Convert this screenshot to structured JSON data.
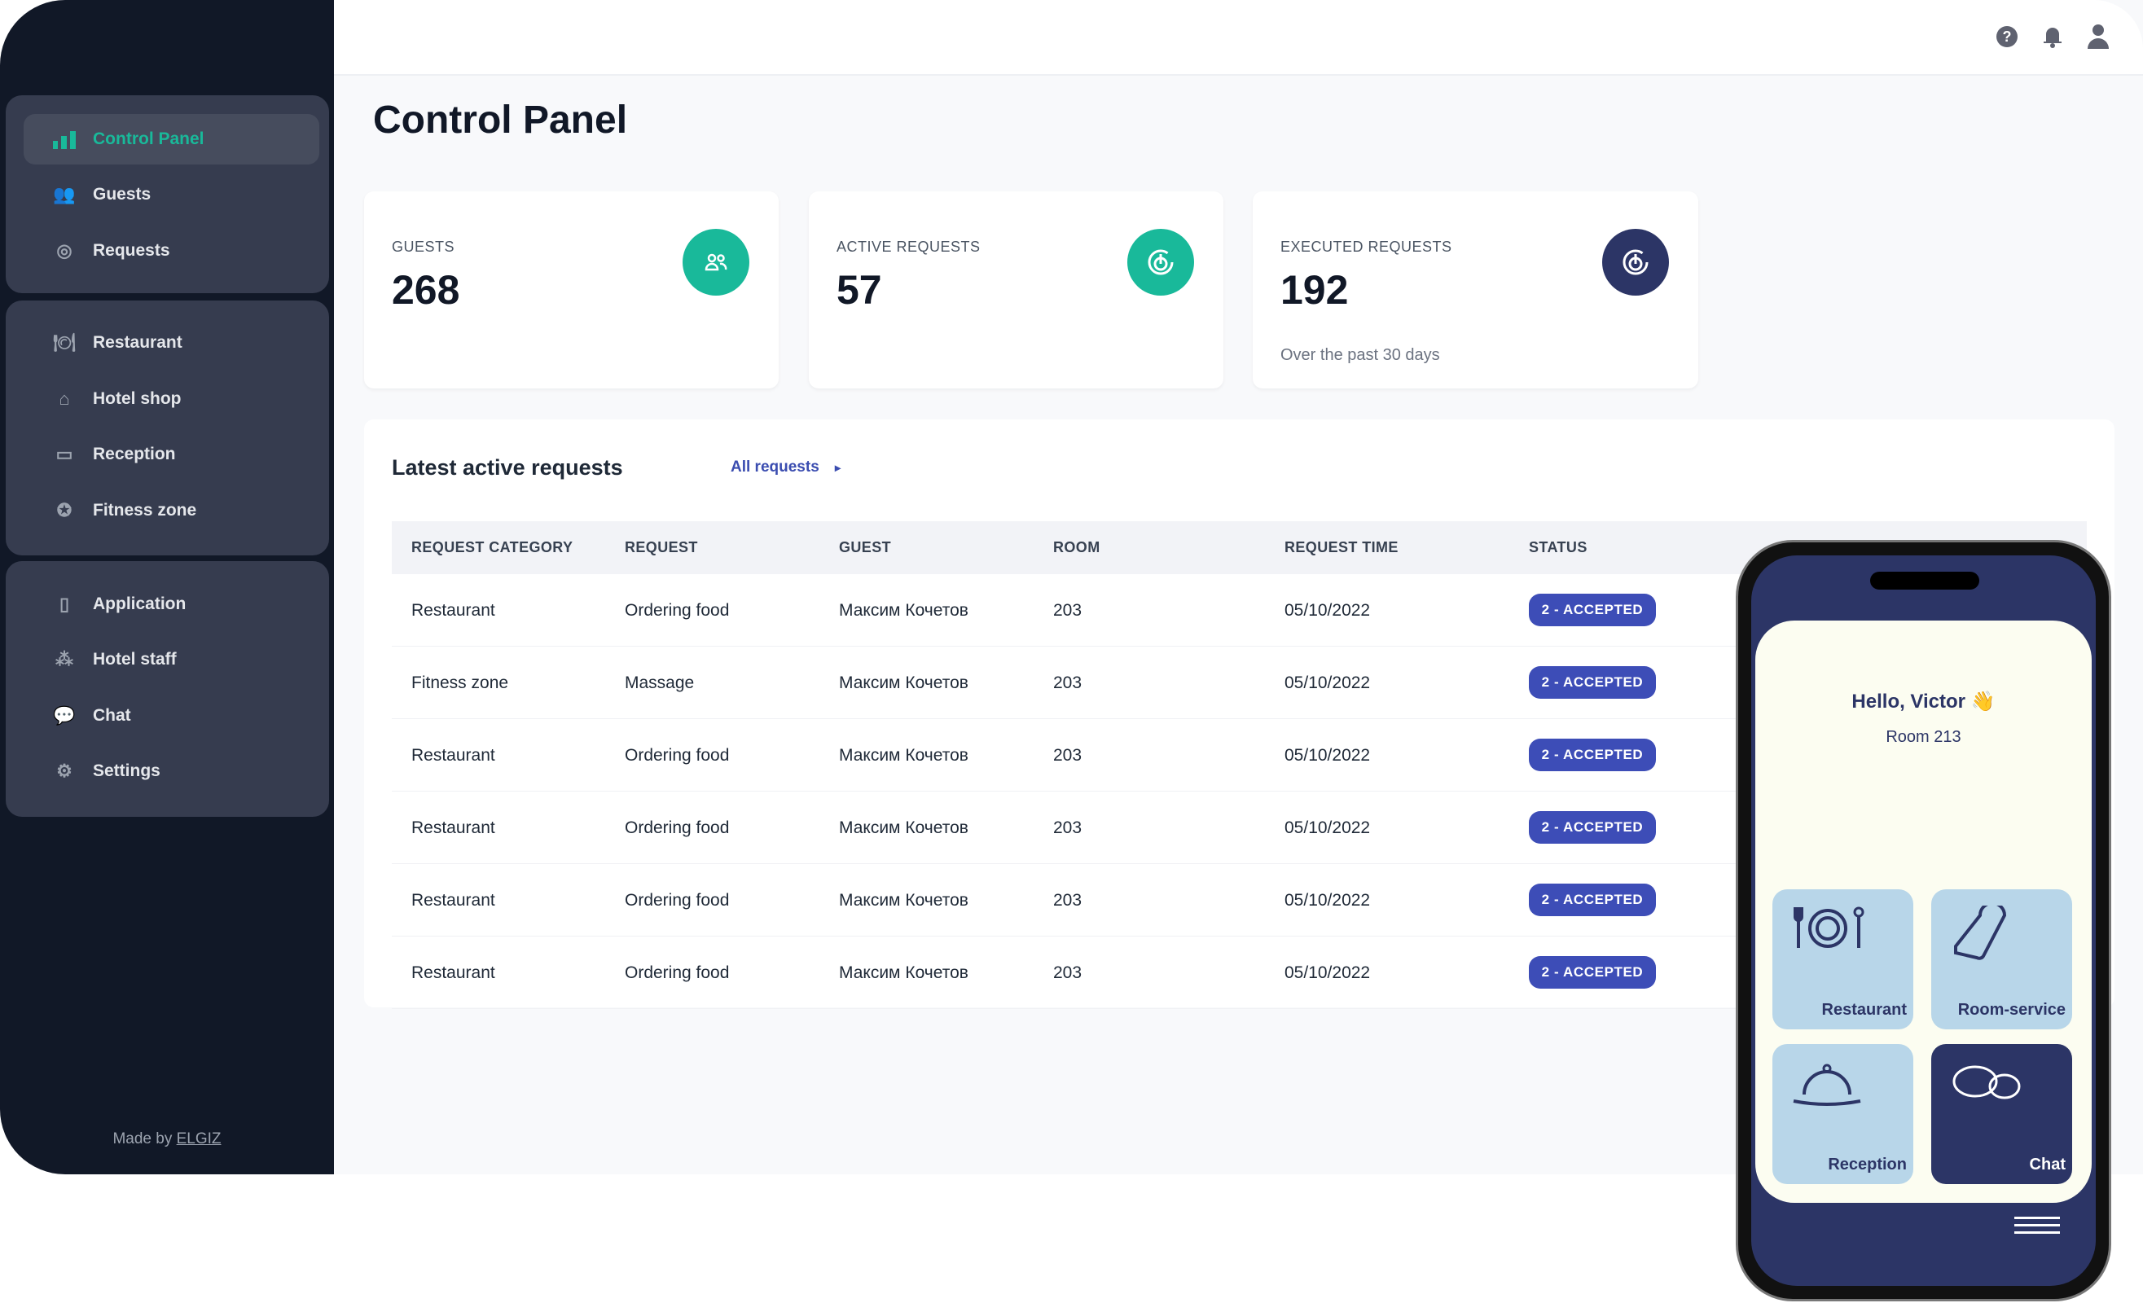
{
  "sidebar": {
    "groups": [
      [
        {
          "label": "Control Panel",
          "icon": "bar-chart-icon",
          "active": true
        },
        {
          "label": "Guests",
          "icon": "users-icon"
        },
        {
          "label": "Requests",
          "icon": "requests-icon"
        }
      ],
      [
        {
          "label": "Restaurant",
          "icon": "restaurant-icon"
        },
        {
          "label": "Hotel shop",
          "icon": "shop-icon"
        },
        {
          "label": "Reception",
          "icon": "monitor-icon"
        },
        {
          "label": "Fitness zone",
          "icon": "fitness-icon"
        }
      ],
      [
        {
          "label": "Application",
          "icon": "phone-icon"
        },
        {
          "label": "Hotel staff",
          "icon": "staff-icon"
        },
        {
          "label": "Chat",
          "icon": "chat-icon"
        },
        {
          "label": "Settings",
          "icon": "gear-icon"
        }
      ]
    ],
    "made_by": "Made by",
    "made_by_link": "ELGIZ"
  },
  "header": {
    "icons": [
      "help-icon",
      "bell-icon",
      "user-icon"
    ]
  },
  "page_title": "Control Panel",
  "stats": [
    {
      "label": "GUESTS",
      "value": "268",
      "color": "#19b99a",
      "icon": "users-icon"
    },
    {
      "label": "ACTIVE REQUESTS",
      "value": "57",
      "color": "#19b99a",
      "icon": "requests-icon"
    },
    {
      "label": "EXECUTED REQUESTS",
      "value": "192",
      "sub": "Over the past 30 days",
      "color": "#2c3566",
      "icon": "requests-icon"
    }
  ],
  "table": {
    "title": "Latest active requests",
    "link": "All requests",
    "columns": [
      "REQUEST CATEGORY",
      "REQUEST",
      "GUEST",
      "ROOM",
      "REQUEST TIME",
      "STATUS"
    ],
    "rows": [
      [
        "Restaurant",
        "Ordering food",
        "Максим Кочетов",
        "203",
        "05/10/2022",
        "2 - ACCEPTED"
      ],
      [
        "Fitness zone",
        "Massage",
        "Максим Кочетов",
        "203",
        "05/10/2022",
        "2 - ACCEPTED"
      ],
      [
        "Restaurant",
        "Ordering food",
        "Максим Кочетов",
        "203",
        "05/10/2022",
        "2 - ACCEPTED"
      ],
      [
        "Restaurant",
        "Ordering food",
        "Максим Кочетов",
        "203",
        "05/10/2022",
        "2 - ACCEPTED"
      ],
      [
        "Restaurant",
        "Ordering food",
        "Максим Кочетов",
        "203",
        "05/10/2022",
        "2 - ACCEPTED"
      ],
      [
        "Restaurant",
        "Ordering food",
        "Максим Кочетов",
        "203",
        "05/10/2022",
        "2 - ACCEPTED"
      ]
    ]
  },
  "phone": {
    "greeting": "Hello, Victor 👋",
    "room": "Room 213",
    "tiles": [
      "Restaurant",
      "Room-service",
      "Reception",
      "Chat"
    ]
  }
}
